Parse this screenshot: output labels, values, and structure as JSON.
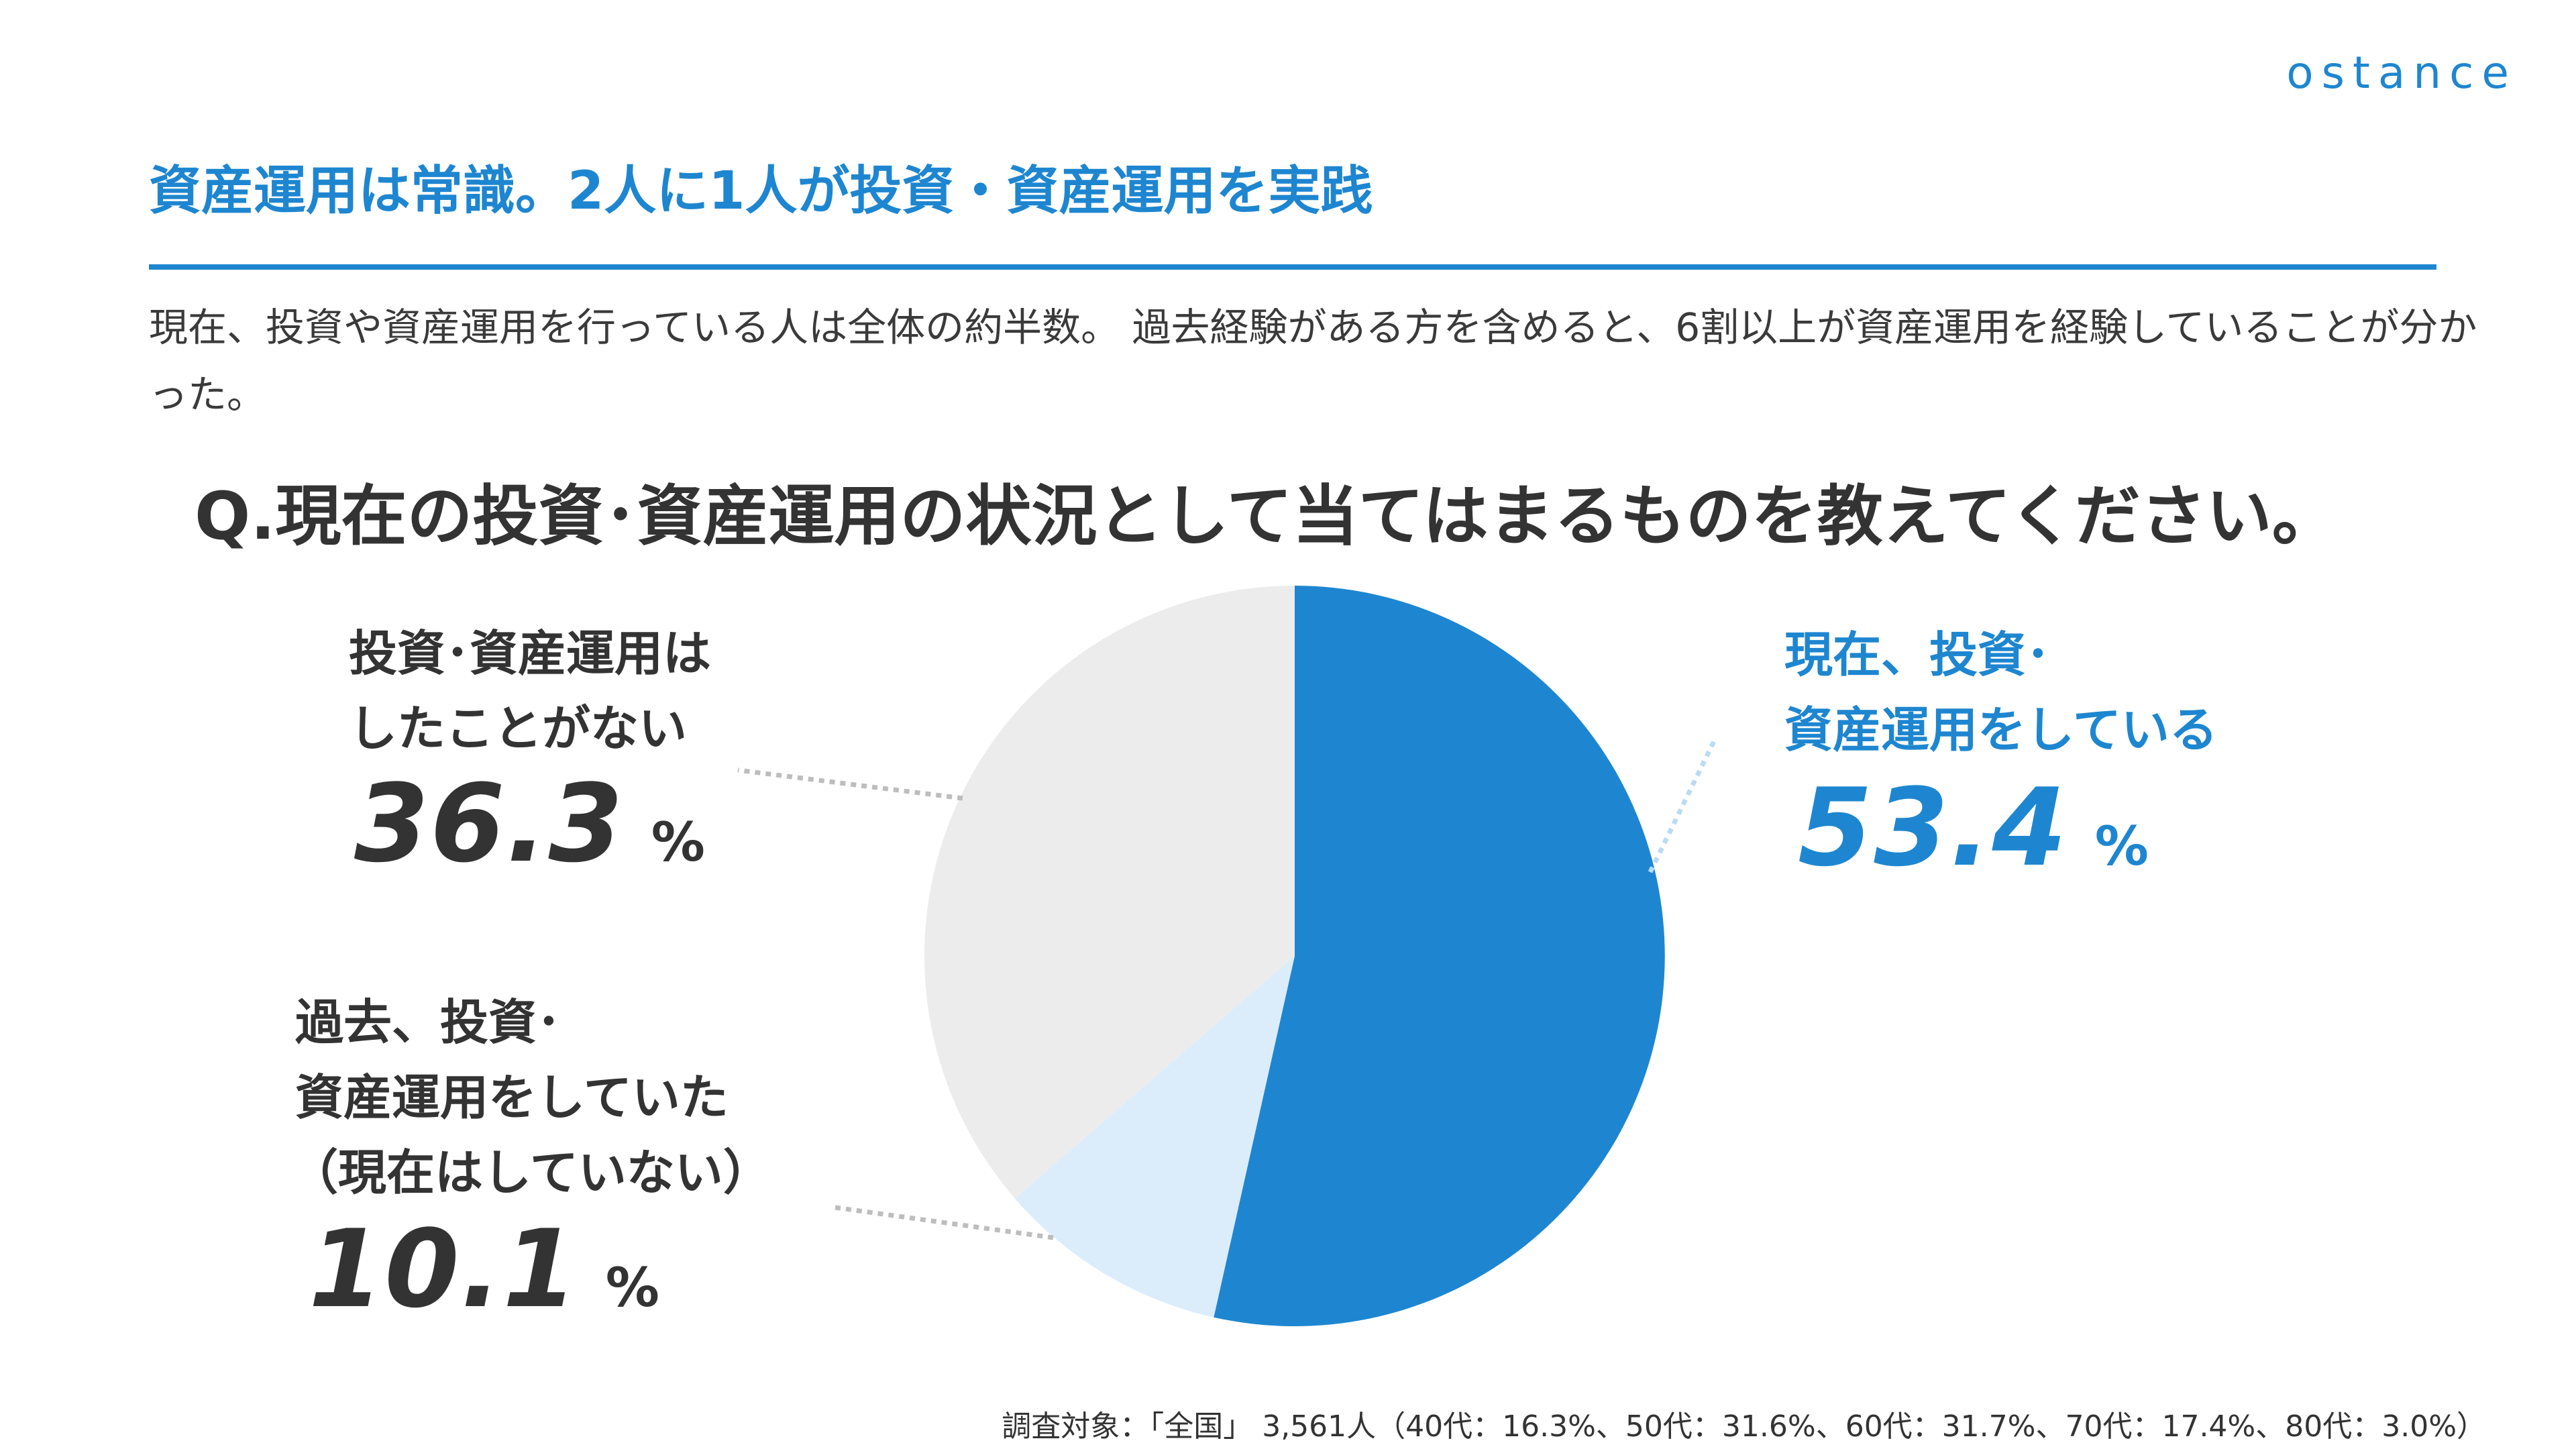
{
  "brand": {
    "logo": "ostance"
  },
  "header": {
    "title": "資産運用は常識。2人に1人が投資・資産運用を実践",
    "lead": "現在、投資や資産運用を行っている人は全体の約半数。 過去経験がある方を含めると、6割以上が資産運用を経験していることが分かった。"
  },
  "question": "Q.現在の投資･資産運用の状況として当てはまるものを教えてください。",
  "chart_data": {
    "type": "pie",
    "slices": [
      {
        "lines": [
          "現在、投資･",
          "資産運用をしている"
        ],
        "value": 53.4,
        "color": "#1e86d0"
      },
      {
        "lines": [
          "過去、投資･",
          "資産運用をしていた",
          "（現在はしていない）"
        ],
        "value": 10.1,
        "color": "#dbecfb"
      },
      {
        "lines": [
          "投資･資産運用は",
          "したことがない"
        ],
        "value": 36.3,
        "color": "#ececec"
      }
    ],
    "unit": "%",
    "start": "12 o'clock",
    "direction": "clockwise"
  },
  "footnote": "調査対象：「全国」 3,561人（40代：16.3%、50代：31.6%、60代：31.7%、70代：17.4%、80代：3.0%）"
}
